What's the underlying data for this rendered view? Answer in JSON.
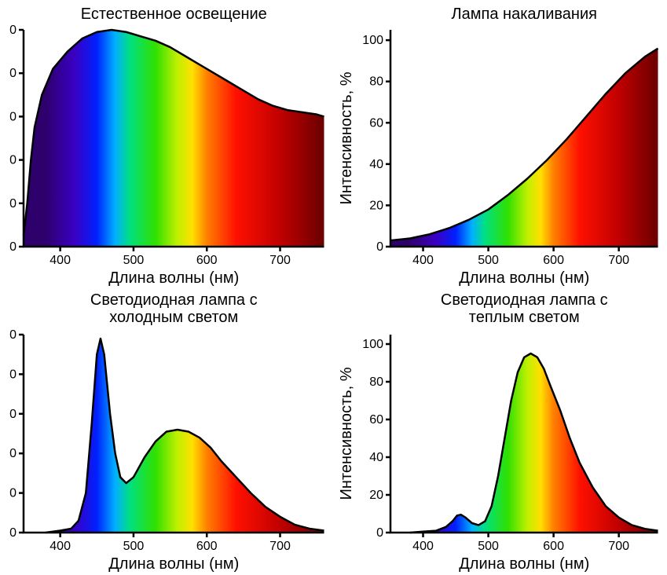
{
  "global": {
    "background": "#ffffff",
    "axis_color": "#000000",
    "line_width": 2.5,
    "tick_length": 6,
    "tick_fontsize": 16,
    "title_fontsize": 20,
    "axis_label_fontsize": 20,
    "outline_color": "#000000",
    "outline_width": 2.5,
    "gradient_stops": [
      {
        "nm": 380,
        "color": "#2e006c"
      },
      {
        "nm": 420,
        "color": "#3a00c4"
      },
      {
        "nm": 450,
        "color": "#0020ff"
      },
      {
        "nm": 475,
        "color": "#00b0ff"
      },
      {
        "nm": 495,
        "color": "#00e080"
      },
      {
        "nm": 530,
        "color": "#30e000"
      },
      {
        "nm": 560,
        "color": "#c0f000"
      },
      {
        "nm": 580,
        "color": "#ffe000"
      },
      {
        "nm": 600,
        "color": "#ff8000"
      },
      {
        "nm": 640,
        "color": "#ff1000"
      },
      {
        "nm": 700,
        "color": "#c00000"
      },
      {
        "nm": 760,
        "color": "#6a0000"
      }
    ]
  },
  "panels": [
    {
      "id": "natural",
      "title": "Естественное освещение",
      "xlabel": "Длина волны (нм)",
      "ylabel": "",
      "xlim": [
        350,
        760
      ],
      "ylim": [
        0,
        100
      ],
      "xticks": [
        400,
        500,
        600,
        700
      ],
      "yticks": [
        0,
        20,
        40,
        60,
        80,
        100
      ],
      "ytick_labels": [
        "0",
        "0",
        "0",
        "0",
        "0",
        "0"
      ],
      "xtick_labels": [
        "400",
        "500",
        "600",
        "700"
      ],
      "data": [
        [
          350,
          5
        ],
        [
          355,
          20
        ],
        [
          360,
          40
        ],
        [
          365,
          55
        ],
        [
          375,
          70
        ],
        [
          390,
          82
        ],
        [
          410,
          90
        ],
        [
          430,
          96
        ],
        [
          450,
          99
        ],
        [
          470,
          100
        ],
        [
          490,
          99
        ],
        [
          510,
          97
        ],
        [
          530,
          95
        ],
        [
          550,
          92
        ],
        [
          570,
          88
        ],
        [
          590,
          84
        ],
        [
          610,
          80
        ],
        [
          630,
          76
        ],
        [
          650,
          72
        ],
        [
          670,
          68
        ],
        [
          690,
          65
        ],
        [
          710,
          63
        ],
        [
          730,
          62
        ],
        [
          750,
          61
        ],
        [
          760,
          60
        ]
      ]
    },
    {
      "id": "incandescent",
      "title": "Лампа накаливания",
      "xlabel": "Длина волны (нм)",
      "ylabel": "Интенсивность, %",
      "xlim": [
        350,
        760
      ],
      "ylim": [
        0,
        105
      ],
      "xticks": [
        400,
        500,
        600,
        700
      ],
      "yticks": [
        0,
        20,
        40,
        60,
        80,
        100
      ],
      "ytick_labels": [
        "0",
        "20",
        "40",
        "60",
        "80",
        "100"
      ],
      "xtick_labels": [
        "400",
        "500",
        "600",
        "700"
      ],
      "data": [
        [
          350,
          3
        ],
        [
          380,
          4
        ],
        [
          410,
          6
        ],
        [
          440,
          9
        ],
        [
          470,
          13
        ],
        [
          500,
          18
        ],
        [
          530,
          25
        ],
        [
          560,
          33
        ],
        [
          590,
          42
        ],
        [
          620,
          52
        ],
        [
          650,
          63
        ],
        [
          680,
          74
        ],
        [
          710,
          84
        ],
        [
          740,
          92
        ],
        [
          760,
          96
        ]
      ]
    },
    {
      "id": "led_cold",
      "title": "Светодиодная лампа с холодным светом",
      "xlabel": "Длина волны (нм)",
      "ylabel": "",
      "xlim": [
        350,
        760
      ],
      "ylim": [
        0,
        100
      ],
      "xticks": [
        400,
        500,
        600,
        700
      ],
      "yticks": [
        0,
        20,
        40,
        60,
        80,
        100
      ],
      "ytick_labels": [
        "0",
        "0",
        "0",
        "0",
        "0",
        "0"
      ],
      "xtick_labels": [
        "400",
        "500",
        "600",
        "700"
      ],
      "data": [
        [
          380,
          0
        ],
        [
          400,
          1
        ],
        [
          415,
          2
        ],
        [
          425,
          6
        ],
        [
          435,
          20
        ],
        [
          443,
          55
        ],
        [
          450,
          90
        ],
        [
          455,
          98
        ],
        [
          460,
          90
        ],
        [
          468,
          60
        ],
        [
          475,
          40
        ],
        [
          482,
          28
        ],
        [
          490,
          25
        ],
        [
          500,
          28
        ],
        [
          515,
          38
        ],
        [
          530,
          46
        ],
        [
          545,
          51
        ],
        [
          560,
          52
        ],
        [
          575,
          51
        ],
        [
          590,
          48
        ],
        [
          605,
          43
        ],
        [
          620,
          36
        ],
        [
          640,
          28
        ],
        [
          660,
          20
        ],
        [
          680,
          13
        ],
        [
          700,
          8
        ],
        [
          720,
          4
        ],
        [
          740,
          2
        ],
        [
          760,
          1
        ]
      ]
    },
    {
      "id": "led_warm",
      "title": "Светодиодная лампа с теплым светом",
      "xlabel": "Длина волны (нм)",
      "ylabel": "Интенсивность, %",
      "xlim": [
        350,
        760
      ],
      "ylim": [
        0,
        105
      ],
      "xticks": [
        400,
        500,
        600,
        700
      ],
      "yticks": [
        0,
        20,
        40,
        60,
        80,
        100
      ],
      "ytick_labels": [
        "0",
        "20",
        "40",
        "60",
        "80",
        "100"
      ],
      "xtick_labels": [
        "400",
        "500",
        "600",
        "700"
      ],
      "data": [
        [
          380,
          0
        ],
        [
          400,
          0.5
        ],
        [
          420,
          1
        ],
        [
          435,
          3
        ],
        [
          445,
          6
        ],
        [
          452,
          9
        ],
        [
          458,
          9.5
        ],
        [
          465,
          8
        ],
        [
          475,
          5
        ],
        [
          485,
          4
        ],
        [
          495,
          6
        ],
        [
          505,
          14
        ],
        [
          515,
          30
        ],
        [
          525,
          50
        ],
        [
          535,
          70
        ],
        [
          545,
          85
        ],
        [
          555,
          93
        ],
        [
          565,
          95
        ],
        [
          575,
          93
        ],
        [
          585,
          87
        ],
        [
          595,
          78
        ],
        [
          610,
          65
        ],
        [
          625,
          50
        ],
        [
          640,
          37
        ],
        [
          660,
          24
        ],
        [
          680,
          14
        ],
        [
          700,
          8
        ],
        [
          720,
          4
        ],
        [
          740,
          2
        ],
        [
          760,
          1
        ]
      ]
    }
  ]
}
